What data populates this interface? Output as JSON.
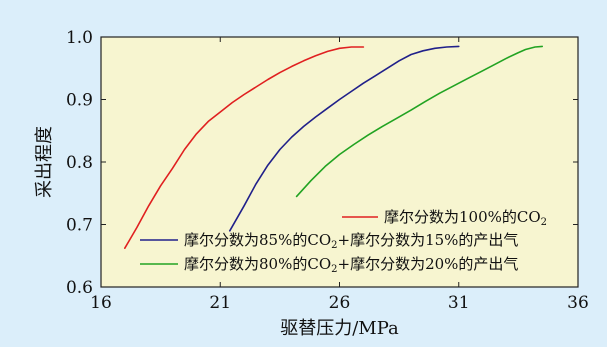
{
  "chart_data": {
    "type": "line",
    "title": "",
    "xlabel": "驱替压力/MPa",
    "ylabel": "采出程度",
    "xlim": [
      16,
      36
    ],
    "ylim": [
      0.6,
      1.0
    ],
    "x_ticks": [
      "16",
      "21",
      "26",
      "31",
      "36"
    ],
    "y_ticks": [
      "0.6",
      "0.7",
      "0.8",
      "0.9",
      "1.0"
    ],
    "grid": false,
    "legend_position": "bottom-right",
    "plot_background": "#f7f5d0",
    "series": [
      {
        "name_parts": [
          [
            "摩尔分数为100%的CO",
            ""
          ],
          [
            "2",
            "sub"
          ]
        ],
        "color": "#e02020",
        "points": [
          [
            17.0,
            0.662
          ],
          [
            17.5,
            0.695
          ],
          [
            18.0,
            0.73
          ],
          [
            18.5,
            0.762
          ],
          [
            19.0,
            0.79
          ],
          [
            19.5,
            0.82
          ],
          [
            20.0,
            0.845
          ],
          [
            20.5,
            0.865
          ],
          [
            21.0,
            0.88
          ],
          [
            21.5,
            0.895
          ],
          [
            22.0,
            0.908
          ],
          [
            22.5,
            0.92
          ],
          [
            23.0,
            0.932
          ],
          [
            23.5,
            0.943
          ],
          [
            24.0,
            0.953
          ],
          [
            24.5,
            0.962
          ],
          [
            25.0,
            0.97
          ],
          [
            25.5,
            0.977
          ],
          [
            26.0,
            0.982
          ],
          [
            26.5,
            0.984
          ],
          [
            27.0,
            0.984
          ]
        ]
      },
      {
        "name_parts": [
          [
            "摩尔分数为85%的CO",
            ""
          ],
          [
            "2",
            "sub"
          ],
          [
            "+摩尔分数为15%的产出气",
            ""
          ]
        ],
        "color": "#20208a",
        "points": [
          [
            21.4,
            0.69
          ],
          [
            22.0,
            0.73
          ],
          [
            22.5,
            0.765
          ],
          [
            23.0,
            0.795
          ],
          [
            23.5,
            0.82
          ],
          [
            24.0,
            0.84
          ],
          [
            24.5,
            0.857
          ],
          [
            25.0,
            0.872
          ],
          [
            25.5,
            0.886
          ],
          [
            26.0,
            0.9
          ],
          [
            26.5,
            0.913
          ],
          [
            27.0,
            0.926
          ],
          [
            27.5,
            0.938
          ],
          [
            28.0,
            0.95
          ],
          [
            28.5,
            0.962
          ],
          [
            29.0,
            0.972
          ],
          [
            29.5,
            0.978
          ],
          [
            30.0,
            0.982
          ],
          [
            30.5,
            0.984
          ],
          [
            31.0,
            0.985
          ]
        ]
      },
      {
        "name_parts": [
          [
            "摩尔分数为80%的CO",
            ""
          ],
          [
            "2",
            "sub"
          ],
          [
            "+摩尔分数为20%的产出气",
            ""
          ]
        ],
        "color": "#22a322",
        "points": [
          [
            24.2,
            0.745
          ],
          [
            24.8,
            0.77
          ],
          [
            25.4,
            0.793
          ],
          [
            26.0,
            0.812
          ],
          [
            26.6,
            0.828
          ],
          [
            27.2,
            0.843
          ],
          [
            27.8,
            0.857
          ],
          [
            28.4,
            0.87
          ],
          [
            29.0,
            0.883
          ],
          [
            29.6,
            0.897
          ],
          [
            30.2,
            0.91
          ],
          [
            30.8,
            0.922
          ],
          [
            31.4,
            0.934
          ],
          [
            32.0,
            0.946
          ],
          [
            32.6,
            0.958
          ],
          [
            33.0,
            0.966
          ],
          [
            33.5,
            0.975
          ],
          [
            33.8,
            0.98
          ],
          [
            34.2,
            0.984
          ],
          [
            34.5,
            0.985
          ]
        ]
      }
    ]
  }
}
